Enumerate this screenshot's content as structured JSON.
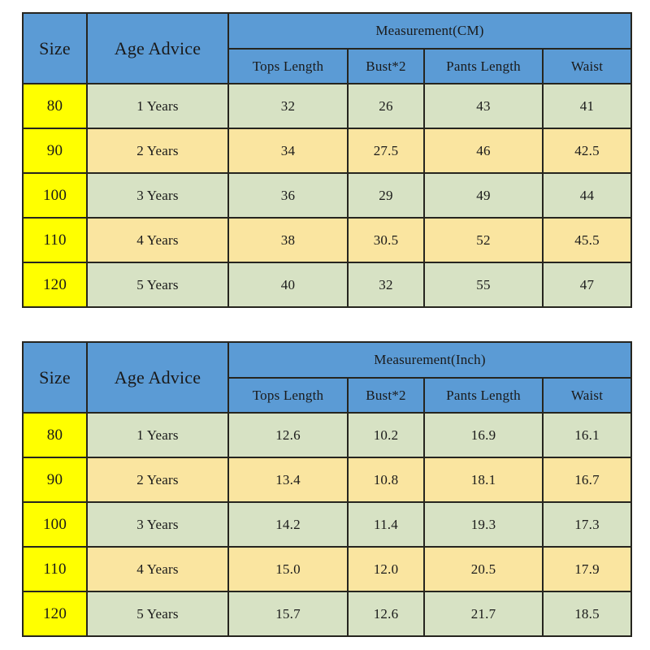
{
  "colors": {
    "header_blue": "#5b9bd5",
    "size_yellow": "#ffff00",
    "row_green": "#d7e2c4",
    "row_tan": "#fae5a0",
    "border_dark": "#26251f",
    "text_dark": "#1a1a1a",
    "page_bg": "#ffffff"
  },
  "tables": [
    {
      "id": "cm",
      "header": {
        "size_label": "Size",
        "age_label": "Age Advice",
        "measurement_label": "Measurement(CM)",
        "columns": [
          "Tops Length",
          "Bust*2",
          "Pants Length",
          "Waist"
        ]
      },
      "rows": [
        {
          "size": "80",
          "age": "1 Years",
          "values": [
            "32",
            "26",
            "43",
            "41"
          ]
        },
        {
          "size": "90",
          "age": "2 Years",
          "values": [
            "34",
            "27.5",
            "46",
            "42.5"
          ]
        },
        {
          "size": "100",
          "age": "3 Years",
          "values": [
            "36",
            "29",
            "49",
            "44"
          ]
        },
        {
          "size": "110",
          "age": "4 Years",
          "values": [
            "38",
            "30.5",
            "52",
            "45.5"
          ]
        },
        {
          "size": "120",
          "age": "5 Years",
          "values": [
            "40",
            "32",
            "55",
            "47"
          ]
        }
      ]
    },
    {
      "id": "inch",
      "header": {
        "size_label": "Size",
        "age_label": "Age Advice",
        "measurement_label": "Measurement(Inch)",
        "columns": [
          "Tops Length",
          "Bust*2",
          "Pants Length",
          "Waist"
        ]
      },
      "rows": [
        {
          "size": "80",
          "age": "1 Years",
          "values": [
            "12.6",
            "10.2",
            "16.9",
            "16.1"
          ]
        },
        {
          "size": "90",
          "age": "2 Years",
          "values": [
            "13.4",
            "10.8",
            "18.1",
            "16.7"
          ]
        },
        {
          "size": "100",
          "age": "3 Years",
          "values": [
            "14.2",
            "11.4",
            "19.3",
            "17.3"
          ]
        },
        {
          "size": "110",
          "age": "4 Years",
          "values": [
            "15.0",
            "12.0",
            "20.5",
            "17.9"
          ]
        },
        {
          "size": "120",
          "age": "5 Years",
          "values": [
            "15.7",
            "12.6",
            "21.7",
            "18.5"
          ]
        }
      ]
    }
  ]
}
